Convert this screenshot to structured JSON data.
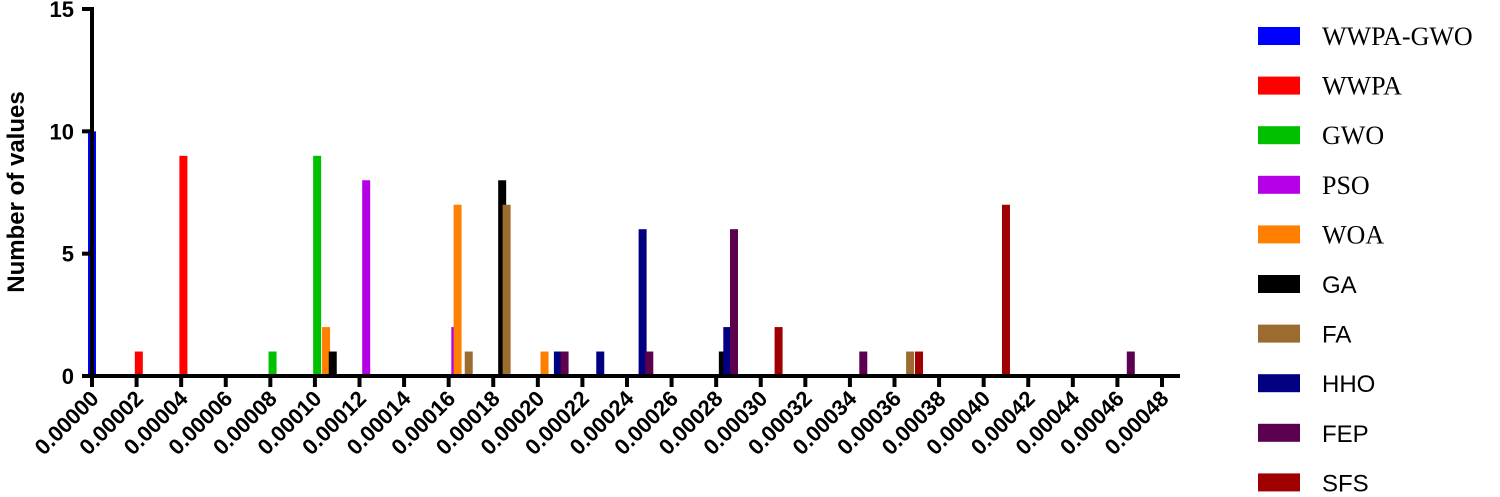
{
  "chart_data": {
    "type": "bar",
    "title": "",
    "xlabel": "",
    "ylabel": "Number of values",
    "ylim": [
      0,
      15
    ],
    "xlim": [
      0,
      0.00048
    ],
    "y_ticks": [
      "0",
      "5",
      "10",
      "15"
    ],
    "x_tick_labels": [
      "0.00000",
      "0.00002",
      "0.00004",
      "0.00006",
      "0.00008",
      "0.00010",
      "0.00012",
      "0.00014",
      "0.00016",
      "0.00018",
      "0.00020",
      "0.00022",
      "0.00024",
      "0.00026",
      "0.00028",
      "0.00030",
      "0.00032",
      "0.00034",
      "0.00036",
      "0.00038",
      "0.00040",
      "0.00042",
      "0.00044",
      "0.00046",
      "0.00048"
    ],
    "grid": false,
    "legend_position": "right",
    "series": [
      {
        "name": "WWPA-GWO",
        "color": "#0000ff",
        "points": [
          {
            "x": 0.0,
            "y": 10
          }
        ]
      },
      {
        "name": "WWPA",
        "color": "#ff0000",
        "points": [
          {
            "x": 2.1e-05,
            "y": 1
          },
          {
            "x": 4.1e-05,
            "y": 9
          }
        ]
      },
      {
        "name": "GWO",
        "color": "#00c000",
        "points": [
          {
            "x": 8.1e-05,
            "y": 1
          },
          {
            "x": 0.000101,
            "y": 9
          }
        ]
      },
      {
        "name": "PSO",
        "color": "#b400e6",
        "points": [
          {
            "x": 0.000123,
            "y": 8
          },
          {
            "x": 0.000163,
            "y": 2
          }
        ]
      },
      {
        "name": "WOA",
        "color": "#ff8000",
        "points": [
          {
            "x": 0.000105,
            "y": 2
          },
          {
            "x": 0.000164,
            "y": 7
          },
          {
            "x": 0.000203,
            "y": 1
          }
        ]
      },
      {
        "name": "GA",
        "color": "#000000",
        "points": [
          {
            "x": 0.000108,
            "y": 1
          },
          {
            "x": 0.000184,
            "y": 8
          },
          {
            "x": 0.000283,
            "y": 1
          }
        ]
      },
      {
        "name": "FA",
        "color": "#9c6b30",
        "points": [
          {
            "x": 0.000169,
            "y": 1
          },
          {
            "x": 0.000186,
            "y": 7
          },
          {
            "x": 0.000367,
            "y": 1
          }
        ]
      },
      {
        "name": "HHO",
        "color": "#000080",
        "points": [
          {
            "x": 0.000209,
            "y": 1
          },
          {
            "x": 0.000228,
            "y": 1
          },
          {
            "x": 0.000247,
            "y": 6
          },
          {
            "x": 0.000285,
            "y": 2
          }
        ]
      },
      {
        "name": "FEP",
        "color": "#5c0050",
        "points": [
          {
            "x": 0.000212,
            "y": 1
          },
          {
            "x": 0.00025,
            "y": 1
          },
          {
            "x": 0.000288,
            "y": 6
          },
          {
            "x": 0.000346,
            "y": 1
          },
          {
            "x": 0.000466,
            "y": 1
          }
        ]
      },
      {
        "name": "SFS",
        "color": "#a00000",
        "points": [
          {
            "x": 0.000308,
            "y": 2
          },
          {
            "x": 0.000371,
            "y": 1
          },
          {
            "x": 0.00041,
            "y": 7
          }
        ]
      }
    ]
  }
}
